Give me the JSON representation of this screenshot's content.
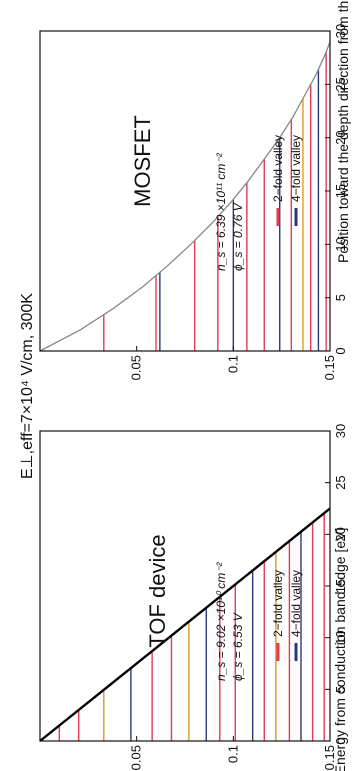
{
  "figure": {
    "title": "E⊥,eff=7×10⁴ V/cm, 300K",
    "xlabel": "Position toward the depth direction from the interface [nm]",
    "ylabel": "Energy from conduction band edge [eV]"
  },
  "colors": {
    "two_fold": "#e23a52",
    "four_fold": "#2a3a78",
    "alt_line": "#d99a2b",
    "band_edge_tof": "#000000",
    "band_edge_mosfet": "#888888"
  },
  "chart_data": [
    {
      "type": "line",
      "panel": "TOF device",
      "title": "TOF device",
      "annotation_ns": "n_s = 9.02 ×10¹⁰ cm⁻²",
      "annotation_phi": "ϕ_s = 6.53 V",
      "xlabel": "Position toward the depth direction from the interface [nm]",
      "ylabel": "Energy from conduction band edge [eV]",
      "xlim": [
        0,
        30
      ],
      "ylim": [
        0,
        0.15
      ],
      "xticks": [
        "0",
        "5",
        "10",
        "15",
        "20",
        "25",
        "30"
      ],
      "yticks": [
        "0.05",
        "0.1",
        "0.15"
      ],
      "legend": [
        "2−fold valley",
        "4−fold valley"
      ],
      "legend_position": "bottom-right",
      "band_edge": {
        "x": [
          0,
          22.5
        ],
        "y": [
          0,
          0.15
        ]
      },
      "subband_levels": [
        {
          "energy": 0.01,
          "valley": "2-fold"
        },
        {
          "energy": 0.02,
          "valley": "2-fold"
        },
        {
          "energy": 0.033,
          "valley": "alt"
        },
        {
          "energy": 0.047,
          "valley": "4-fold"
        },
        {
          "energy": 0.058,
          "valley": "2-fold"
        },
        {
          "energy": 0.068,
          "valley": "2-fold"
        },
        {
          "energy": 0.077,
          "valley": "alt"
        },
        {
          "energy": 0.086,
          "valley": "4-fold"
        },
        {
          "energy": 0.093,
          "valley": "2-fold"
        },
        {
          "energy": 0.101,
          "valley": "2-fold"
        },
        {
          "energy": 0.11,
          "valley": "4-fold"
        },
        {
          "energy": 0.116,
          "valley": "2-fold"
        },
        {
          "energy": 0.122,
          "valley": "alt"
        },
        {
          "energy": 0.129,
          "valley": "2-fold"
        },
        {
          "energy": 0.135,
          "valley": "4-fold"
        },
        {
          "energy": 0.141,
          "valley": "2-fold"
        },
        {
          "energy": 0.147,
          "valley": "2-fold"
        }
      ]
    },
    {
      "type": "line",
      "panel": "MOSFET",
      "title": "MOSFET",
      "annotation_ns": "n_s = 6.39 ×10¹¹ cm⁻²",
      "annotation_phi": "ϕ_s = 0.76 V",
      "xlabel": "Position toward the depth direction from the interface [nm]",
      "ylabel": "Energy from conduction band edge [eV]",
      "xlim": [
        0,
        30
      ],
      "ylim": [
        0,
        0.15
      ],
      "xticks": [
        "0",
        "5",
        "10",
        "15",
        "20",
        "25",
        "30"
      ],
      "yticks": [
        "0.05",
        "0.1",
        "0.15"
      ],
      "legend": [
        "2−fold valley",
        "4−fold valley"
      ],
      "legend_position": "bottom-right",
      "band_edge": {
        "x": [
          0,
          2,
          4,
          6,
          8,
          10,
          12,
          14,
          16,
          18,
          20,
          22,
          24,
          26,
          28,
          29
        ],
        "y": [
          0,
          0.021,
          0.038,
          0.053,
          0.066,
          0.078,
          0.089,
          0.099,
          0.108,
          0.116,
          0.124,
          0.131,
          0.137,
          0.143,
          0.148,
          0.15
        ]
      },
      "subband_levels": [
        {
          "energy": 0.033,
          "valley": "2-fold"
        },
        {
          "energy": 0.06,
          "valley": "2-fold"
        },
        {
          "energy": 0.062,
          "valley": "4-fold"
        },
        {
          "energy": 0.08,
          "valley": "2-fold"
        },
        {
          "energy": 0.092,
          "valley": "2-fold"
        },
        {
          "energy": 0.1,
          "valley": "4-fold"
        },
        {
          "energy": 0.107,
          "valley": "2-fold"
        },
        {
          "energy": 0.116,
          "valley": "2-fold"
        },
        {
          "energy": 0.124,
          "valley": "4-fold"
        },
        {
          "energy": 0.13,
          "valley": "2-fold"
        },
        {
          "energy": 0.136,
          "valley": "alt"
        },
        {
          "energy": 0.14,
          "valley": "2-fold"
        },
        {
          "energy": 0.144,
          "valley": "4-fold"
        },
        {
          "energy": 0.148,
          "valley": "2-fold"
        }
      ]
    }
  ]
}
